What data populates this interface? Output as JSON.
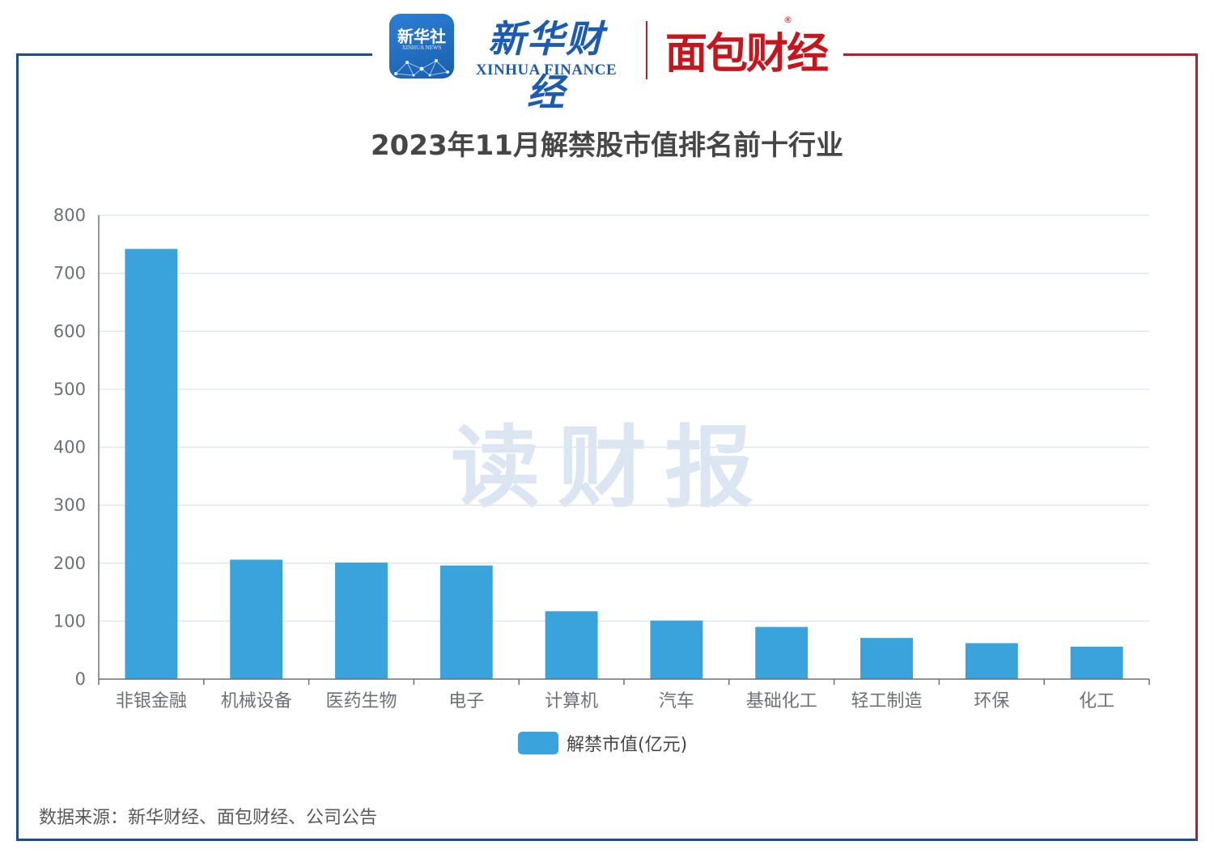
{
  "header": {
    "xinhua_badge": "新华社",
    "xinhua_badge_sub": "XINHUA NEWS",
    "xinhua_finance_cn": "新华财经",
    "xinhua_finance_en": "XINHUA FINANCE",
    "mianbao_cn": "面包财经",
    "mianbao_reg": "®"
  },
  "watermark": "读财报",
  "source_note": "数据来源：新华财经、面包财经、公司公告",
  "colors": {
    "bar": "#3aa3db",
    "frame_left": "#1f4e8c",
    "frame_right": "#b32025"
  },
  "chart_data": {
    "type": "bar",
    "title": "2023年11月解禁股市值排名前十行业",
    "categories": [
      "非银金融",
      "机械设备",
      "医药生物",
      "电子",
      "计算机",
      "汽车",
      "基础化工",
      "轻工制造",
      "环保",
      "化工"
    ],
    "series": [
      {
        "name": "解禁市值(亿元)",
        "values": [
          742,
          206,
          201,
          196,
          117,
          101,
          90,
          71,
          62,
          56
        ]
      }
    ],
    "yticks": [
      "0",
      "100",
      "200",
      "300",
      "400",
      "500",
      "600",
      "700",
      "800"
    ],
    "ylim": [
      0,
      800
    ],
    "grid": true,
    "legend": "bottom-center"
  }
}
